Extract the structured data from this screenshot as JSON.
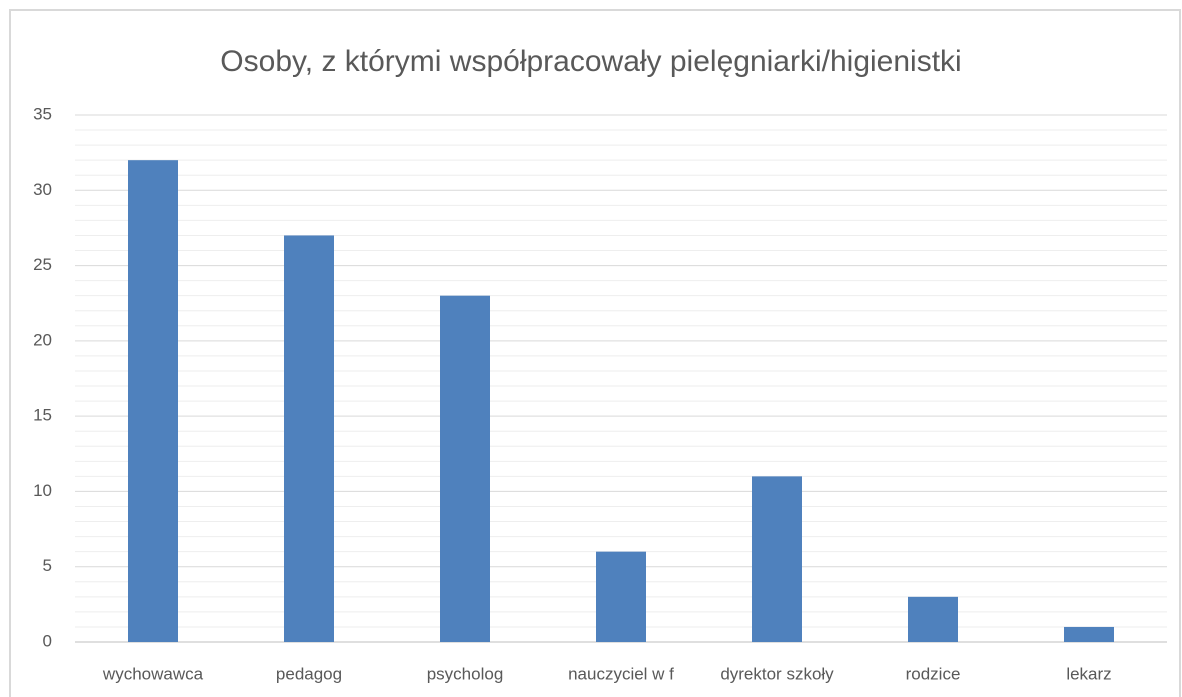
{
  "chart_data": {
    "type": "bar",
    "title": "Osoby, z którymi współpracowały pielęgniarki/higienistki",
    "categories": [
      "wychowawca",
      "pedagog",
      "psycholog",
      "nauczyciel w f",
      "dyrektor szkoły",
      "rodzice",
      "lekarz"
    ],
    "values": [
      32,
      27,
      23,
      6,
      11,
      3,
      1
    ],
    "color": "#4f81bd",
    "ylim": [
      0,
      35
    ],
    "yticks": [
      0,
      5,
      10,
      15,
      20,
      25,
      30,
      35
    ],
    "yminorticks": [
      1,
      2,
      3,
      4,
      6,
      7,
      8,
      9,
      11,
      12,
      13,
      14,
      16,
      17,
      18,
      19,
      21,
      22,
      23,
      24,
      26,
      27,
      28,
      29,
      31,
      32,
      33,
      34
    ],
    "grid": true
  }
}
